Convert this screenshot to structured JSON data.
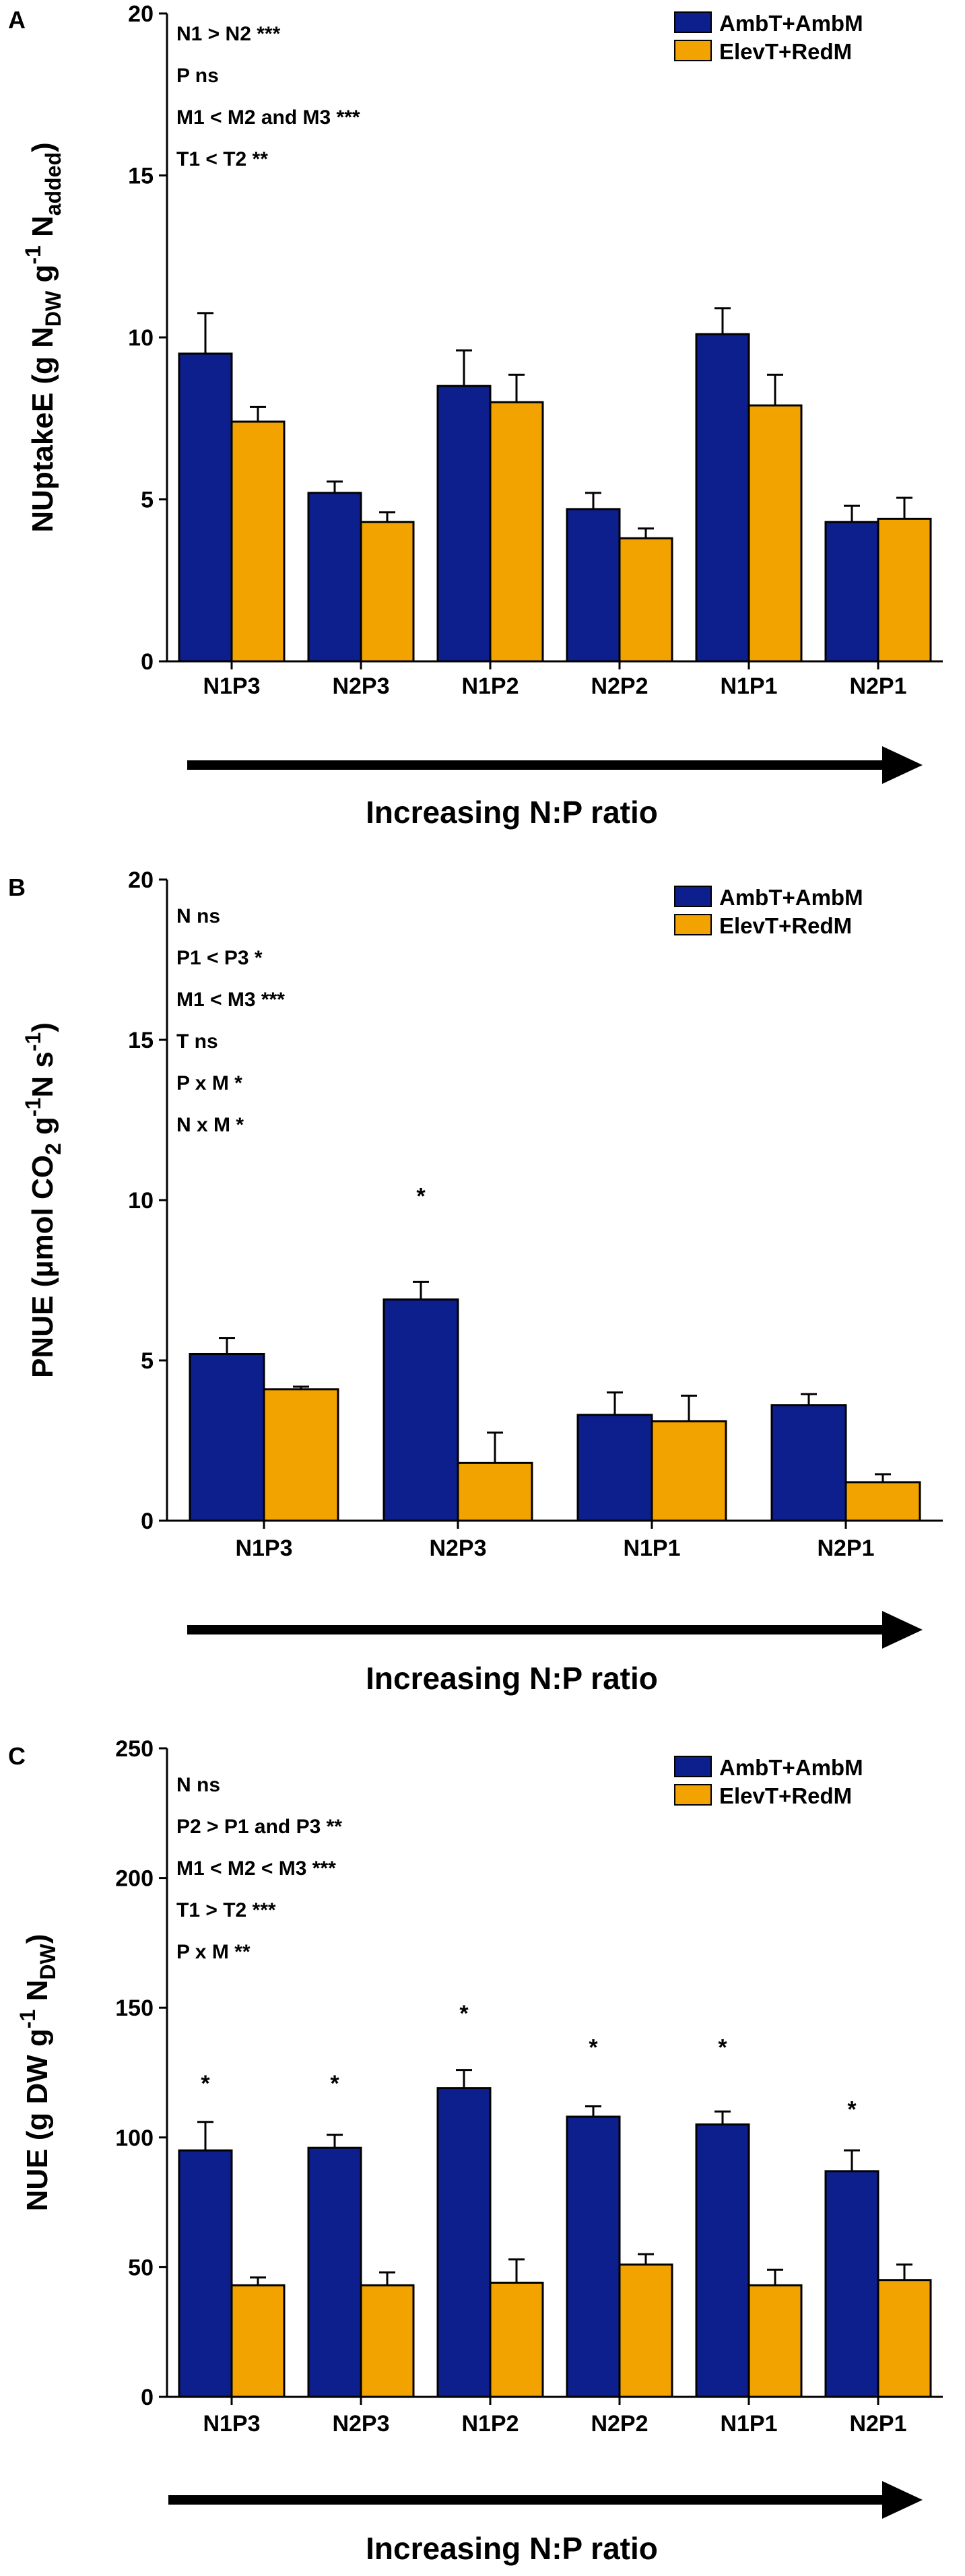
{
  "chart_data": [
    {
      "type": "bar",
      "panel": "A",
      "categories": [
        "N1P3",
        "N2P3",
        "N1P2",
        "N2P2",
        "N1P1",
        "N2P1"
      ],
      "series": [
        {
          "name": "AmbT+AmbM",
          "color": "#0d1f8c",
          "values": [
            9.5,
            5.2,
            8.5,
            4.7,
            10.1,
            4.3
          ],
          "errors": [
            1.25,
            0.35,
            1.1,
            0.5,
            0.8,
            0.5
          ]
        },
        {
          "name": "ElevT+RedM",
          "color": "#f2a300",
          "values": [
            7.4,
            4.3,
            8.0,
            3.8,
            7.9,
            4.4
          ],
          "errors": [
            0.45,
            0.3,
            0.85,
            0.3,
            0.95,
            0.65
          ]
        }
      ],
      "ylabel_parts": {
        "main": "NUptakeE (g N",
        "sub1": "DW",
        "mid": " g",
        "sup": "-1",
        "mid2": " N",
        "sub2": "added",
        "end": ")"
      },
      "ylim": [
        0,
        20
      ],
      "yticks": [
        0,
        5,
        10,
        15,
        20
      ],
      "stats": [
        "N1 > N2 ***",
        "P ns",
        "M1 < M2 and M3 ***",
        "T1 < T2 **"
      ],
      "sig_marks": [],
      "arrow_label": "Increasing N:P ratio"
    },
    {
      "type": "bar",
      "panel": "B",
      "categories": [
        "N1P3",
        "N2P3",
        "N1P1",
        "N2P1"
      ],
      "series": [
        {
          "name": "AmbT+AmbM",
          "color": "#0d1f8c",
          "values": [
            5.2,
            6.9,
            3.3,
            3.6
          ],
          "errors": [
            0.5,
            0.55,
            0.7,
            0.35
          ]
        },
        {
          "name": "ElevT+RedM",
          "color": "#f2a300",
          "values": [
            4.1,
            1.8,
            3.1,
            1.2
          ],
          "errors": [
            0.08,
            0.95,
            0.8,
            0.25
          ]
        }
      ],
      "ylabel_parts": {
        "main": "PNUE (µmol CO",
        "sub1": "2",
        "mid": " g",
        "sup": "-1",
        "mid2": "N s",
        "sup2": "-1",
        "end": ")"
      },
      "ylim": [
        0,
        20
      ],
      "yticks": [
        0,
        5,
        10,
        15,
        20
      ],
      "stats": [
        "N ns",
        "P1 < P3 *",
        "M1 < M3 ***",
        "T ns",
        "P x M *",
        "N x M *"
      ],
      "sig_marks": [
        {
          "category": "N2P3",
          "label": "*",
          "value": 10.3
        }
      ],
      "arrow_label": "Increasing N:P ratio"
    },
    {
      "type": "bar",
      "panel": "C",
      "categories": [
        "N1P3",
        "N2P3",
        "N1P2",
        "N2P2",
        "N1P1",
        "N2P1"
      ],
      "series": [
        {
          "name": "AmbT+AmbM",
          "color": "#0d1f8c",
          "values": [
            95,
            96,
            119,
            108,
            105,
            87
          ],
          "errors": [
            11,
            5,
            7,
            4,
            5,
            8
          ]
        },
        {
          "name": "ElevT+RedM",
          "color": "#f2a300",
          "values": [
            43,
            43,
            44,
            51,
            43,
            45
          ],
          "errors": [
            3,
            5,
            9,
            4,
            6,
            6
          ]
        }
      ],
      "ylabel_parts": {
        "main": "NUE (g DW g",
        "sup": "-1",
        "mid2": " N",
        "sub2": "DW",
        "end": ")"
      },
      "ylim": [
        0,
        250
      ],
      "yticks": [
        0,
        50,
        100,
        150,
        200,
        250
      ],
      "stats": [
        "N ns",
        "P2 > P1 and P3 **",
        "M1 < M2 < M3 ***",
        "T1 > T2 ***",
        "P x M **"
      ],
      "sig_marks": [
        {
          "category": "N1P3",
          "label": "*",
          "value": 123
        },
        {
          "category": "N2P3",
          "label": "*",
          "value": 123
        },
        {
          "category": "N1P2",
          "label": "*",
          "value": 150
        },
        {
          "category": "N2P2",
          "label": "*",
          "value": 137
        },
        {
          "category": "N1P1",
          "label": "*",
          "value": 137
        },
        {
          "category": "N2P1",
          "label": "*",
          "value": 113
        }
      ],
      "arrow_label": "Increasing N:P ratio"
    }
  ]
}
